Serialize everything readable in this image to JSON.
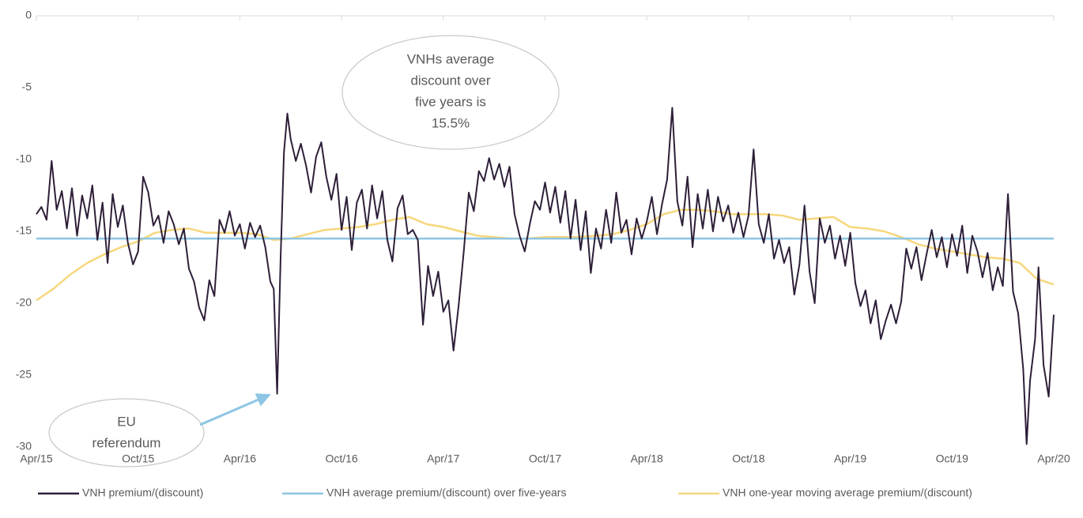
{
  "chart_data": {
    "type": "line",
    "xlim": [
      0,
      60
    ],
    "xticks": [
      {
        "value": 0,
        "label": "Apr/15"
      },
      {
        "value": 6,
        "label": "Oct/15"
      },
      {
        "value": 12,
        "label": "Apr/16"
      },
      {
        "value": 18,
        "label": "Oct/16"
      },
      {
        "value": 24,
        "label": "Apr/17"
      },
      {
        "value": 30,
        "label": "Oct/17"
      },
      {
        "value": 36,
        "label": "Apr/18"
      },
      {
        "value": 42,
        "label": "Oct/18"
      },
      {
        "value": 48,
        "label": "Apr/19"
      },
      {
        "value": 54,
        "label": "Oct/19"
      },
      {
        "value": 60,
        "label": "Apr/20"
      }
    ],
    "ylim": [
      -30,
      0
    ],
    "yticks": [
      0,
      -5,
      -10,
      -15,
      -20,
      -25,
      -30
    ],
    "grid": false,
    "legend": "bottom",
    "annotations": [
      {
        "lines": [
          "VNHs average",
          "discount over",
          "five years is",
          "15.5%"
        ]
      },
      {
        "lines": [
          "EU",
          "referendum"
        ]
      }
    ],
    "series": [
      {
        "name": "VNH premium/(discount)",
        "color": "#2e1f38",
        "x": [
          0,
          0.3,
          0.6,
          0.9,
          1.2,
          1.5,
          1.8,
          2.1,
          2.4,
          2.7,
          3.0,
          3.3,
          3.6,
          3.9,
          4.2,
          4.5,
          4.8,
          5.1,
          5.4,
          5.7,
          6.0,
          6.3,
          6.6,
          6.9,
          7.2,
          7.5,
          7.8,
          8.1,
          8.4,
          8.7,
          9.0,
          9.3,
          9.6,
          9.9,
          10.2,
          10.5,
          10.8,
          11.1,
          11.4,
          11.7,
          12.0,
          12.3,
          12.6,
          12.9,
          13.2,
          13.5,
          13.8,
          14.0,
          14.2,
          14.4,
          14.6,
          14.8,
          15.0,
          15.3,
          15.6,
          15.9,
          16.2,
          16.5,
          16.8,
          17.1,
          17.4,
          17.7,
          18.0,
          18.3,
          18.6,
          18.9,
          19.2,
          19.5,
          19.8,
          20.1,
          20.4,
          20.7,
          21.0,
          21.3,
          21.6,
          21.9,
          22.2,
          22.5,
          22.8,
          23.1,
          23.4,
          23.7,
          24.0,
          24.3,
          24.6,
          24.9,
          25.2,
          25.5,
          25.8,
          26.1,
          26.4,
          26.7,
          27.0,
          27.3,
          27.6,
          27.9,
          28.2,
          28.5,
          28.8,
          29.1,
          29.4,
          29.7,
          30.0,
          30.3,
          30.6,
          30.9,
          31.2,
          31.5,
          31.8,
          32.1,
          32.4,
          32.7,
          33.0,
          33.3,
          33.6,
          33.9,
          34.2,
          34.5,
          34.8,
          35.1,
          35.4,
          35.7,
          36.0,
          36.3,
          36.6,
          36.9,
          37.2,
          37.5,
          37.8,
          38.1,
          38.4,
          38.7,
          39.0,
          39.3,
          39.6,
          39.9,
          40.2,
          40.5,
          40.8,
          41.1,
          41.4,
          41.7,
          42.0,
          42.3,
          42.6,
          42.9,
          43.2,
          43.5,
          43.8,
          44.1,
          44.4,
          44.7,
          45.0,
          45.3,
          45.6,
          45.9,
          46.2,
          46.5,
          46.8,
          47.1,
          47.4,
          47.7,
          48.0,
          48.3,
          48.6,
          48.9,
          49.2,
          49.5,
          49.8,
          50.1,
          50.4,
          50.7,
          51.0,
          51.3,
          51.6,
          51.9,
          52.2,
          52.5,
          52.8,
          53.1,
          53.4,
          53.7,
          54.0,
          54.3,
          54.6,
          54.9,
          55.2,
          55.5,
          55.8,
          56.1,
          56.4,
          56.7,
          57.0,
          57.3,
          57.6,
          57.9,
          58.2,
          58.4,
          58.6,
          58.9,
          59.1,
          59.4,
          59.7,
          60.0
        ],
        "values": [
          -13.8,
          -13.3,
          -14.2,
          -10.1,
          -13.5,
          -12.2,
          -14.8,
          -12,
          -15.3,
          -12.5,
          -14.1,
          -11.8,
          -15.6,
          -13,
          -17.2,
          -12.4,
          -14.7,
          -13.2,
          -15.8,
          -17.3,
          -16.4,
          -11.2,
          -12.3,
          -14.6,
          -13.9,
          -15.8,
          -13.6,
          -14.5,
          -15.9,
          -14.8,
          -17.6,
          -18.5,
          -20.3,
          -21.2,
          -18.4,
          -19.5,
          -14.2,
          -15.1,
          -13.6,
          -15.3,
          -14.5,
          -16.2,
          -14.4,
          -15.4,
          -14.6,
          -16.1,
          -18.5,
          -19,
          -26.3,
          -17,
          -9.5,
          -6.8,
          -8.6,
          -10.1,
          -8.9,
          -10.4,
          -12.3,
          -9.8,
          -8.8,
          -11.2,
          -12.8,
          -11,
          -14.9,
          -12.6,
          -16.3,
          -13,
          -12.1,
          -14.8,
          -11.8,
          -14.1,
          -12.2,
          -15.6,
          -17.1,
          -13.4,
          -12.5,
          -15.2,
          -14.9,
          -15.6,
          -21.5,
          -17.4,
          -19.5,
          -17.8,
          -20.6,
          -19.8,
          -23.3,
          -20.2,
          -16.5,
          -12.3,
          -13.6,
          -10.8,
          -11.5,
          -9.9,
          -11.4,
          -10.3,
          -11.9,
          -10.5,
          -13.8,
          -15.3,
          -16.4,
          -14.5,
          -12.9,
          -13.5,
          -11.6,
          -13.7,
          -11.9,
          -14.4,
          -12.2,
          -15.5,
          -12.8,
          -16.3,
          -13.6,
          -17.9,
          -14.8,
          -16.2,
          -13.5,
          -15.8,
          -12.3,
          -15.1,
          -14.2,
          -16.6,
          -14.1,
          -15.5,
          -14.3,
          -12.6,
          -15.2,
          -13.1,
          -11.4,
          -6.4,
          -12.9,
          -14.6,
          -11.2,
          -16.1,
          -12.4,
          -14.8,
          -12.1,
          -15,
          -12.6,
          -14.3,
          -13.2,
          -15.1,
          -13.7,
          -15.4,
          -13.9,
          -9.3,
          -14.5,
          -15.8,
          -13.8,
          -16.9,
          -15.6,
          -17.2,
          -16.1,
          -19.4,
          -17.3,
          -13.2,
          -17.8,
          -20,
          -14.1,
          -15.8,
          -14.6,
          -16.9,
          -15.3,
          -17.4,
          -15.1,
          -18.6,
          -20.2,
          -19.1,
          -21.4,
          -19.8,
          -22.5,
          -21.2,
          -20.1,
          -21.4,
          -19.9,
          -16.2,
          -17.6,
          -16.1,
          -18.4,
          -16.6,
          -14.9,
          -16.8,
          -15.4,
          -17.5,
          -15.2,
          -16.7,
          -14.6,
          -17.9,
          -15.3,
          -16.4,
          -18.2,
          -16.5,
          -19.1,
          -17.5,
          -18.8,
          -12.4,
          -19.2,
          -20.7,
          -24.6,
          -29.8,
          -25.4,
          -22.5,
          -17.5,
          -24.3,
          -26.5,
          -20.8
        ]
      },
      {
        "name": "VNH average premium/(discount) over five-years",
        "color": "#8ec5e3",
        "x": [
          0,
          60
        ],
        "values": [
          -15.5,
          -15.5
        ]
      },
      {
        "name": "VNH one-year moving average premium/(discount)",
        "color": "#f6d77c",
        "x": [
          0,
          1,
          2,
          3,
          4,
          5,
          6,
          7,
          8,
          9,
          10,
          11,
          12,
          13,
          14,
          15,
          16,
          17,
          18,
          19,
          20,
          21,
          22,
          23,
          24,
          25,
          26,
          27,
          28,
          29,
          30,
          31,
          32,
          33,
          34,
          35,
          36,
          37,
          38,
          39,
          40,
          41,
          42,
          43,
          44,
          45,
          46,
          47,
          48,
          49,
          50,
          51,
          52,
          53,
          54,
          55,
          56,
          57,
          58,
          59,
          60
        ],
        "values": [
          -19.8,
          -19,
          -18,
          -17.2,
          -16.6,
          -16.1,
          -15.7,
          -15.1,
          -14.9,
          -14.8,
          -15.1,
          -15.1,
          -15.1,
          -15.2,
          -15.6,
          -15.5,
          -15.2,
          -14.9,
          -14.8,
          -14.7,
          -14.5,
          -14.2,
          -14,
          -14.5,
          -14.7,
          -15,
          -15.3,
          -15.4,
          -15.5,
          -15.5,
          -15.4,
          -15.4,
          -15.4,
          -15.3,
          -15.2,
          -14.9,
          -14.5,
          -13.8,
          -13.5,
          -13.5,
          -13.6,
          -13.8,
          -13.8,
          -13.8,
          -13.9,
          -14.2,
          -14.1,
          -14,
          -14.7,
          -14.8,
          -15,
          -15.4,
          -15.9,
          -16.2,
          -16.4,
          -16.6,
          -16.8,
          -16.9,
          -17.2,
          -18.3,
          -18.7
        ]
      }
    ]
  }
}
